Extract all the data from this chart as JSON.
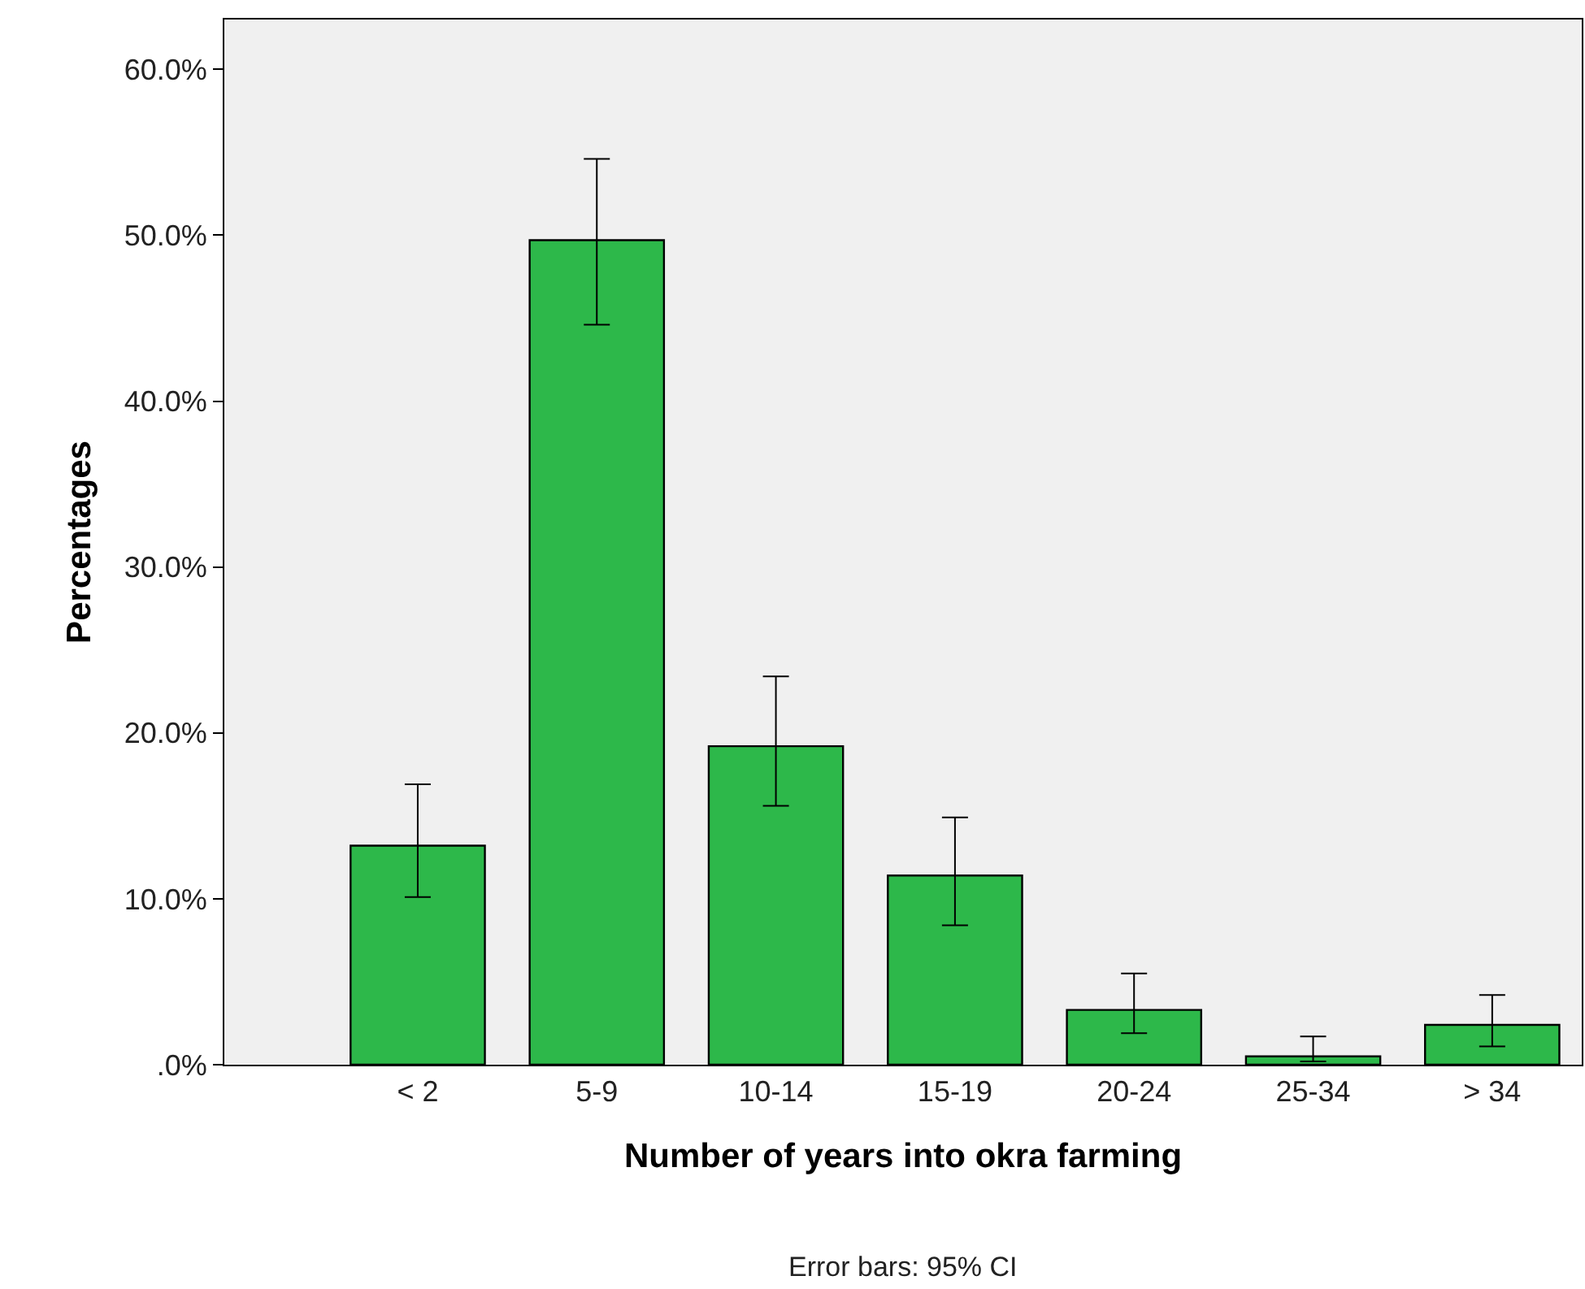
{
  "chart_data": {
    "type": "bar",
    "xlabel": "Number of years into okra farming",
    "ylabel": "Percentages",
    "categories": [
      "< 2",
      "5-9",
      "10-14",
      "15-19",
      "20-24",
      "25-34",
      "> 34"
    ],
    "values": [
      13.2,
      49.7,
      19.2,
      11.4,
      3.3,
      0.5,
      2.4
    ],
    "errors": [
      [
        10.1,
        16.9
      ],
      [
        44.6,
        54.6
      ],
      [
        15.6,
        23.4
      ],
      [
        8.4,
        14.9
      ],
      [
        1.9,
        5.5
      ],
      [
        0.2,
        1.7
      ],
      [
        1.1,
        4.2
      ]
    ],
    "color": "#2db84a",
    "ylim": [
      0,
      63
    ],
    "yticks": [
      {
        "value": 0,
        "label": ".0%"
      },
      {
        "value": 10,
        "label": "10.0%"
      },
      {
        "value": 20,
        "label": "20.0%"
      },
      {
        "value": 30,
        "label": "30.0%"
      },
      {
        "value": 40,
        "label": "40.0%"
      },
      {
        "value": 50,
        "label": "50.0%"
      },
      {
        "value": 60,
        "label": "60.0%"
      }
    ],
    "grid": false,
    "legend": false,
    "annotations": [
      "Error bars: 95% CI"
    ]
  }
}
